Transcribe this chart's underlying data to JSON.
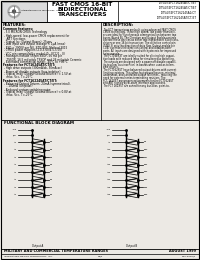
{
  "bg_color": "#ece9e4",
  "header_bg": "#ffffff",
  "border_color": "#000000",
  "header": {
    "right_parts": [
      "IDT54/74FCT16245AT/CT/ET",
      "IDT54/74FCT16245AT/CT/ET",
      "IDT54/74FCT162245A1/CT",
      "IDT54/74FCT162245AT/CT/ET"
    ],
    "center_lines": [
      "FAST CMOS 16-BIT",
      "BIDIRECTIONAL",
      "TRANSCEIVERS"
    ]
  },
  "features_title": "FEATURES:",
  "description_title": "DESCRIPTION:",
  "features_lines": [
    "Common features:",
    " - 5.0 MICRON CMOS Technology",
    " - High-speed, low-power CMOS replacement for",
    "    ABT functions",
    " - Typical Icc (Output Buses): 25μps",
    " - Low Input and output leakage < 1μA (max)",
    " - ESD > 2000V per MIL-STD-883, Method 3015",
    " - CMOS power supplies (2.0-3.6V/4.5-5.5V)",
    " - VCC pin compatibility model (0 - VCC/1 - 0)",
    " - Packages include 56 pin SSOP, 56 mil pin",
    "    TSSOP, 16.5 mil pitch TSSOP and 26 mil pitch Ceramic",
    " - Extended commercial range: -40°C to +85°C",
    "Features for FCT16245AT/CT/ET:",
    " - High drive outputs (300mA/dc, 50mA ac)",
    " - Power off disable outputs (bus isolation)",
    " - Typical Imax (Output Ground Bounce) < 1.5V at",
    "    max. Vcc, T=-25°C",
    "Features for FCT162245AT/CT/ET:",
    " - Balanced Output Drivers: 24mA (symmetrical),",
    "    - 100mA (Unipolar)",
    " - Reduced system switching noise",
    " - Typical Imax (Output Ground Bounce) < 0.8V at",
    "    max. Vcc, T=-25°C"
  ],
  "description_lines": [
    "The FCT transceivers are built using advanced FAST CMOS",
    "CMOS technology. These high speed, low power transceiv-",
    "ers are ideal for synchronous communication between two",
    "buses (A and B). The Direction and Output Enable controls",
    "operate these devices as either two independent 8-bit trans-",
    "ceivers or one 16-bit transceiver. The direction control pin",
    "(T/R0-3) sets the direction of data flow. Output enable pin",
    "(-OE) overrides the direction control and disables both",
    "ports. All inputs are designed with hysteresis for improved",
    "noise margin.",
    "The FCT162X3T are ideally suited for driving high capaci-",
    "tive loads with reduced Imax for simultaneous switching.",
    "The outputs are designed with a power-off disable capabil-",
    "ity to allow 'bus insertion' in boards when used as totem-",
    "pole drivers.",
    "The FCT162X5T have balanced output drivers with current",
    "limiting resistors. This offers fast ground bounce, minimal",
    "undershoot, and controlled output fall times - reducing the",
    "need for external series terminating resistors. The",
    "FCT 162X5T are proper replacements for the FCT16245T",
    "and ABT signals by bi-state interface applications.",
    "The FCT 162X5T are suited for any bus-bias, point-to-"
  ],
  "block_diagram_title": "FUNCTIONAL BLOCK DIAGRAM",
  "footer_left": "MILITARY AND COMMERCIAL TEMPERATURE RANGES",
  "footer_right": "AUGUST 1999",
  "footer_bottom_left": "INTEGRATED DEVICE TECHNOLOGY, INC.",
  "footer_bottom_center": "31/4",
  "footer_bottom_right": "DSC-6000/1",
  "signal_labels_left_a": [
    "~OE",
    "T/R",
    "A1",
    "A2",
    "A3",
    "A4",
    "A5",
    "A6",
    "A7",
    "A8"
  ],
  "signal_labels_left_b": [
    "B1",
    "B2",
    "B3",
    "B4",
    "B5",
    "B6",
    "B7",
    "B8"
  ],
  "signal_labels_right_a": [
    "~OE",
    "T/R",
    "A9",
    "A10",
    "A11",
    "A12",
    "A13",
    "A14",
    "A15",
    "A16"
  ],
  "signal_labels_right_b": [
    "B9",
    "B10",
    "B11",
    "B12",
    "B13",
    "B14",
    "B15",
    "B16"
  ]
}
